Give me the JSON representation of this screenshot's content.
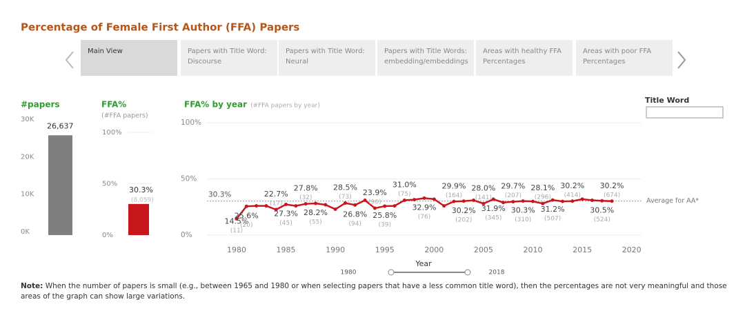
{
  "header": {
    "title": "Percentage of Female First Author (FFA) Papers"
  },
  "tabs": [
    [
      "Main View"
    ],
    [
      "Papers with Title Word:",
      "Discourse"
    ],
    [
      "Papers with Title Word:",
      "Neural"
    ],
    [
      "Papers with Title Words:",
      "embedding/embeddings"
    ],
    [
      "Areas with healthy FFA",
      "Percentages"
    ],
    [
      "Areas with poor FFA",
      "Percentages"
    ]
  ],
  "chart_data": [
    {
      "type": "bar",
      "title": "#papers",
      "categories": [
        null
      ],
      "values": [
        26637
      ],
      "value_labels": [
        "26,637"
      ],
      "color": "#7f7f7f",
      "ylim": [
        0,
        30000
      ],
      "yticks": [
        {
          "value": 0,
          "label": "0K"
        },
        {
          "value": 10000,
          "label": "10K"
        },
        {
          "value": 20000,
          "label": "20K"
        },
        {
          "value": 30000,
          "label": "30K"
        }
      ]
    },
    {
      "type": "bar",
      "title": "FFA%",
      "subtitle": "(#FFA papers)",
      "categories": [
        null
      ],
      "values": [
        30.3
      ],
      "value_labels": [
        "30.3%"
      ],
      "count_labels": [
        "(8,059)"
      ],
      "color": "#c8161d",
      "ylim": [
        0,
        100
      ],
      "yticks": [
        {
          "value": 0,
          "label": "0%"
        },
        {
          "value": 50,
          "label": "50%"
        },
        {
          "value": 100,
          "label": "100%"
        }
      ],
      "grid": true
    },
    {
      "type": "line",
      "title": "FFA% by year",
      "subtitle": "(#FFA papers by year)",
      "color": "#c8161d",
      "x": [
        1980,
        1981,
        1982,
        1983,
        1984,
        1985,
        1986,
        1987,
        1988,
        1989,
        1990,
        1991,
        1992,
        1993,
        1994,
        1995,
        1996,
        1997,
        1998,
        1999,
        2000,
        2001,
        2002,
        2003,
        2004,
        2005,
        2006,
        2007,
        2008,
        2009,
        2010,
        2011,
        2012,
        2013,
        2014,
        2015,
        2016,
        2017,
        2018
      ],
      "values": [
        14.5,
        25.6,
        26,
        26,
        22.7,
        27.3,
        26,
        27.8,
        28.2,
        27,
        23,
        28.5,
        26.8,
        31,
        23.9,
        25.8,
        26,
        31.0,
        31.5,
        32.9,
        32,
        26,
        29.9,
        30.2,
        31,
        28.0,
        31.9,
        29,
        29.7,
        30.3,
        30,
        28.1,
        31.2,
        30,
        30.2,
        32,
        31,
        30.5,
        30.2
      ],
      "value_labels": [
        "14.5%",
        "25.6%",
        null,
        null,
        "22.7%",
        "27.3%",
        null,
        "27.8%",
        "28.2%",
        null,
        null,
        "28.5%",
        "26.8%",
        null,
        "23.9%",
        "25.8%",
        null,
        "31.0%",
        null,
        "32.9%",
        null,
        null,
        "29.9%",
        "30.2%",
        null,
        "28.0%",
        "31.9%",
        null,
        "29.7%",
        "30.3%",
        null,
        "28.1%",
        "31.2%",
        null,
        "30.2%",
        null,
        null,
        "30.5%",
        "30.2%"
      ],
      "count_labels": [
        "(11)",
        "(20)",
        null,
        null,
        "(17)",
        "(45)",
        null,
        "(32)",
        "(55)",
        null,
        null,
        "(73)",
        "(94)",
        null,
        "(90)",
        "(39)",
        null,
        "(75)",
        null,
        "(76)",
        null,
        null,
        "(164)",
        "(202)",
        null,
        "(141)",
        "(345)",
        null,
        "(207)",
        "(310)",
        null,
        "(296)",
        "(507)",
        null,
        "(414)",
        null,
        null,
        "(524)",
        "(674)"
      ],
      "xlim": [
        1977,
        2021
      ],
      "xticks": [
        1980,
        1985,
        1990,
        1995,
        2000,
        2005,
        2010,
        2015,
        2020
      ],
      "ylim": [
        0,
        100
      ],
      "yticks": [
        {
          "value": 0,
          "label": "0%"
        },
        {
          "value": 50,
          "label": "50%"
        },
        {
          "value": 100,
          "label": "100%"
        }
      ],
      "grid": true,
      "average": 30.3,
      "average_label": "30.3%",
      "average_name": "Average for AA*"
    }
  ],
  "slider": {
    "label": "Year",
    "min": 1980,
    "max": 2018
  },
  "filter": {
    "label": "Title Word"
  },
  "note": {
    "bold": "Note:",
    "text": "When the number of papers is small (e.g., between 1965 and 1980 or when selecting papers that have a less common title word), then the percentages are not very meaningful and those areas of the graph can show large variations."
  }
}
